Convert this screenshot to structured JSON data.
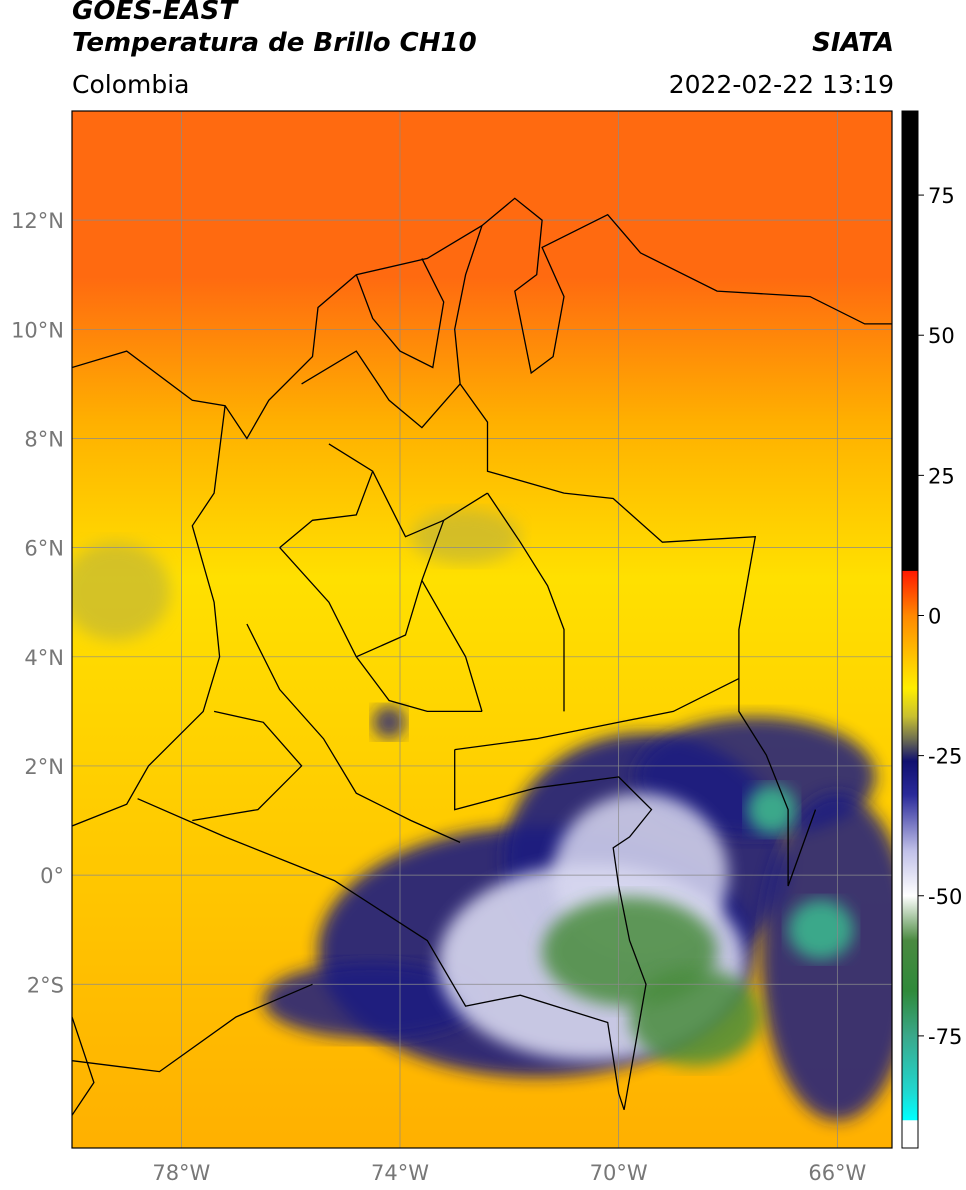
{
  "header": {
    "satellite": "GOES-EAST",
    "product": "Temperatura de Brillo CH10",
    "brand": "SIATA",
    "region": "Colombia",
    "datetime": "2022-02-22 13:19"
  },
  "map": {
    "lon_range": [
      -80,
      -65
    ],
    "lat_range": [
      -5,
      14
    ],
    "lon_ticks": [
      {
        "value": -78,
        "label": "78°W"
      },
      {
        "value": -74,
        "label": "74°W"
      },
      {
        "value": -70,
        "label": "70°W"
      },
      {
        "value": -66,
        "label": "66°W"
      }
    ],
    "lat_ticks": [
      {
        "value": 12,
        "label": "12°N"
      },
      {
        "value": 10,
        "label": "10°N"
      },
      {
        "value": 8,
        "label": "8°N"
      },
      {
        "value": 6,
        "label": "6°N"
      },
      {
        "value": 4,
        "label": "4°N"
      },
      {
        "value": 2,
        "label": "2°N"
      },
      {
        "value": 0,
        "label": "0°"
      },
      {
        "value": -2,
        "label": "2°S"
      }
    ],
    "grid": true
  },
  "colorbar": {
    "range": [
      -95,
      90
    ],
    "ticks": [
      {
        "value": 75,
        "label": "75"
      },
      {
        "value": 50,
        "label": "50"
      },
      {
        "value": 25,
        "label": "25"
      },
      {
        "value": 0,
        "label": "0"
      },
      {
        "value": -25,
        "label": "-25"
      },
      {
        "value": -50,
        "label": "-50"
      },
      {
        "value": -75,
        "label": "-75"
      }
    ],
    "stops": [
      {
        "value": 90,
        "color": "#000000"
      },
      {
        "value": 8,
        "color": "#000000"
      },
      {
        "value": 7.9,
        "color": "#ff1a00"
      },
      {
        "value": 0,
        "color": "#ff8800"
      },
      {
        "value": -8,
        "color": "#ffc800"
      },
      {
        "value": -13,
        "color": "#ffee00"
      },
      {
        "value": -18,
        "color": "#c8c030"
      },
      {
        "value": -22,
        "color": "#707050"
      },
      {
        "value": -26,
        "color": "#101070"
      },
      {
        "value": -32,
        "color": "#2a2a9a"
      },
      {
        "value": -42,
        "color": "#c0c0e8"
      },
      {
        "value": -50,
        "color": "#ffffff"
      },
      {
        "value": -58,
        "color": "#4a8a40"
      },
      {
        "value": -67,
        "color": "#2f8a3a"
      },
      {
        "value": -75,
        "color": "#3aa88a"
      },
      {
        "value": -85,
        "color": "#20d8d0"
      },
      {
        "value": -90,
        "color": "#00ffff"
      },
      {
        "value": -90.1,
        "color": "#ffffff"
      },
      {
        "value": -95,
        "color": "#ffffff"
      }
    ]
  },
  "field_colors": {
    "warm_north": "#ff6a10",
    "mid": "#ffb000",
    "yellow": "#ffe000",
    "olive": "#b8b040",
    "navy": "#1c1c80",
    "lavender": "#d8d8f0",
    "green": "#4a8c3c",
    "teal": "#3aa88a",
    "borders": "#000000",
    "grid": "#8a8a8a"
  }
}
